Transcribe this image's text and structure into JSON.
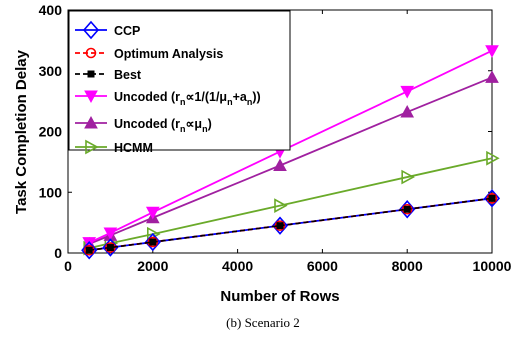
{
  "chart_data": {
    "type": "line",
    "xlabel": "Number of Rows",
    "ylabel": "Task Completion Delay",
    "xlim": [
      0,
      10000
    ],
    "ylim": [
      0,
      400
    ],
    "xticks": [
      0,
      2000,
      4000,
      6000,
      8000,
      10000
    ],
    "yticks": [
      0,
      100,
      200,
      300,
      400
    ],
    "grid": false,
    "legend_position": "top-left",
    "x": [
      500,
      1000,
      2000,
      5000,
      8000,
      10000
    ],
    "series": [
      {
        "name": "CCP",
        "color": "#0000ff",
        "marker": "diamond",
        "dash": "",
        "values": [
          4.5,
          9,
          18,
          45,
          72,
          90
        ]
      },
      {
        "name": "Optimum Analysis",
        "color": "#ff0000",
        "marker": "circle",
        "dash": "5,3",
        "values": [
          4.5,
          9,
          18,
          45,
          72,
          90
        ]
      },
      {
        "name": "Best",
        "color": "#000000",
        "marker": "square",
        "dash": "5,3",
        "values": [
          4.5,
          9,
          18,
          45,
          72,
          90
        ]
      },
      {
        "name": "Uncoded",
        "legend_base": "Uncoded (r",
        "legend_sub": "n",
        "legend_rest": "∝1/(1/μ",
        "legend_sub2": "n",
        "legend_rest2": "+a",
        "legend_sub3": "n",
        "legend_end": "))",
        "color": "#ff00ff",
        "marker": "triangle-down",
        "dash": "",
        "values": [
          17,
          33,
          67,
          167,
          266,
          333
        ]
      },
      {
        "name": "Uncoded",
        "legend_base": "Uncoded (r",
        "legend_sub": "n",
        "legend_rest": "∝μ",
        "legend_sub2": "n",
        "legend_end": ")",
        "color": "#a020a0",
        "marker": "triangle-up",
        "dash": "",
        "values": [
          15,
          29,
          58,
          144,
          232,
          289
        ]
      },
      {
        "name": "HCMM",
        "color": "#6aaa2a",
        "marker": "triangle-right",
        "dash": "",
        "values": [
          8,
          16,
          31,
          78,
          125,
          156
        ]
      }
    ]
  },
  "caption": "(b)  Scenario 2"
}
